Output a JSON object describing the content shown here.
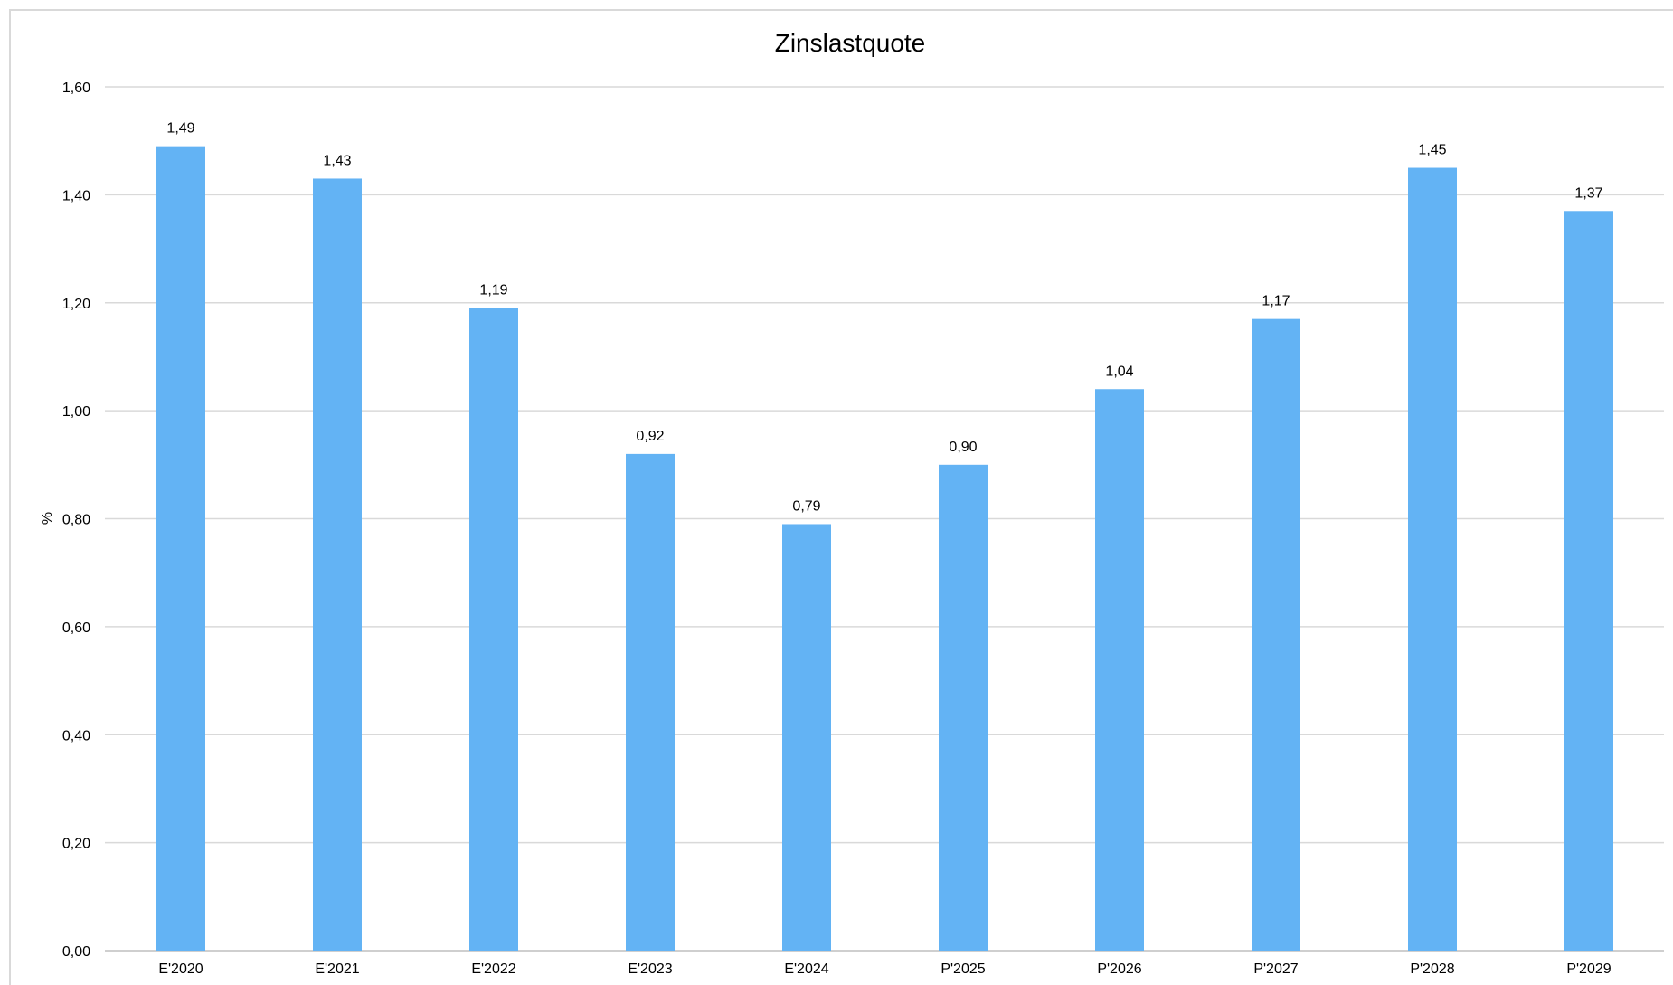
{
  "chart_data": {
    "type": "bar",
    "title": "Zinslastquote",
    "xlabel": "",
    "ylabel": "%",
    "ylim": [
      0,
      1.6
    ],
    "ytick_step": 0.2,
    "yticks": [
      "0,00",
      "0,20",
      "0,40",
      "0,60",
      "0,80",
      "1,00",
      "1,20",
      "1,40",
      "1,60"
    ],
    "grid": true,
    "legend": "none",
    "bar_color": "#63b3f4",
    "categories": [
      "E'2020",
      "E'2021",
      "E'2022",
      "E'2023",
      "E'2024",
      "P'2025",
      "P'2026",
      "P'2027",
      "P'2028",
      "P'2029"
    ],
    "values": [
      1.49,
      1.43,
      1.19,
      0.92,
      0.79,
      0.9,
      1.04,
      1.17,
      1.45,
      1.37
    ],
    "value_labels": [
      "1,49",
      "1,43",
      "1,19",
      "0,92",
      "0,79",
      "0,90",
      "1,04",
      "1,17",
      "1,45",
      "1,37"
    ]
  }
}
